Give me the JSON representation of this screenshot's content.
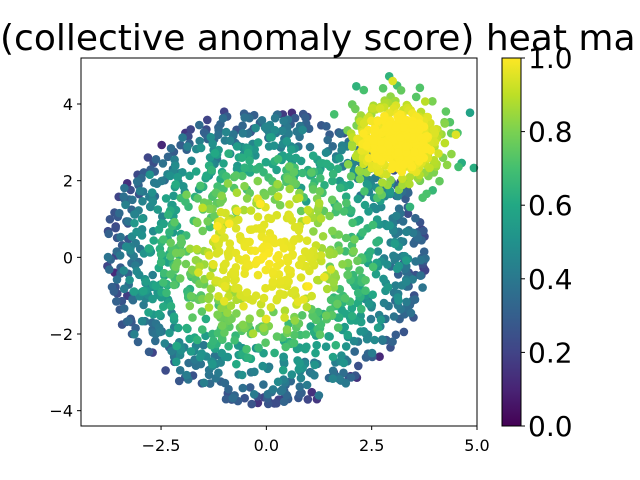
{
  "chart_data": {
    "type": "scatter",
    "title": "(collective anomaly score) heat ma",
    "xlabel": "",
    "ylabel": "",
    "xlim": [
      -4.4,
      5.0
    ],
    "ylim": [
      -4.4,
      5.2
    ],
    "xticks": [
      -2.5,
      0.0,
      2.5,
      5.0
    ],
    "xtick_labels": [
      "−2.5",
      "0.0",
      "2.5",
      "5.0"
    ],
    "yticks": [
      -4,
      -2,
      0,
      2,
      4
    ],
    "ytick_labels": [
      "−4",
      "−2",
      "0",
      "2",
      "4"
    ],
    "grid": false,
    "colormap": "viridis",
    "colorbar": {
      "min": 0.0,
      "max": 1.0,
      "ticks": [
        0.0,
        0.2,
        0.4,
        0.6,
        0.8,
        1.0
      ],
      "tick_labels": [
        "0.0",
        "0.2",
        "0.4",
        "0.6",
        "0.8",
        "1.0"
      ]
    },
    "clusters": [
      {
        "center": [
          0.0,
          0.0
        ],
        "radius": 3.8,
        "color_by": "score"
      },
      {
        "center": [
          3.1,
          3.0
        ],
        "radius": 1.5,
        "color_by": "score"
      }
    ],
    "highlights": [
      {
        "x": -3.6,
        "y": -0.4,
        "score": 0.12
      },
      {
        "x": -3.3,
        "y": -1.0,
        "score": 0.18
      },
      {
        "x": -0.2,
        "y": -3.8,
        "score": 0.15
      },
      {
        "x": 0.4,
        "y": -3.7,
        "score": 0.18
      },
      {
        "x": 1.6,
        "y": -3.0,
        "score": 0.12
      },
      {
        "x": 2.0,
        "y": -3.1,
        "score": 0.15
      },
      {
        "x": 1.2,
        "y": -3.7,
        "score": 0.16
      },
      {
        "x": -1.0,
        "y": 3.8,
        "score": 0.2
      },
      {
        "x": 3.0,
        "y": 4.6,
        "score": 0.95
      },
      {
        "x": 4.5,
        "y": 3.2,
        "score": 0.95
      }
    ]
  }
}
